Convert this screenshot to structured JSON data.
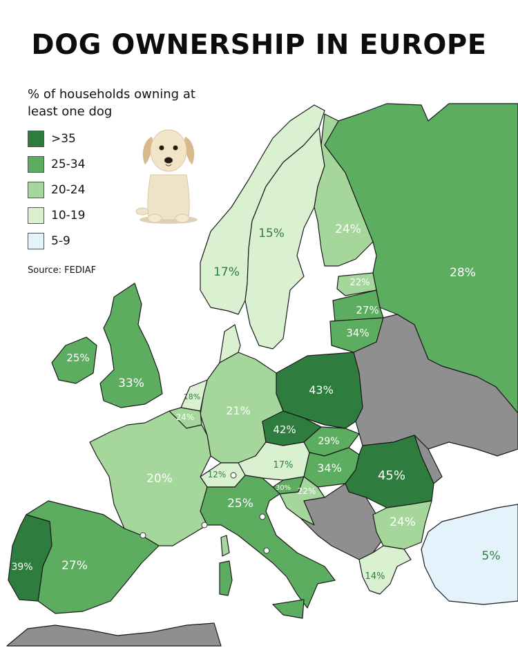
{
  "title": "DOG OWNERSHIP IN EUROPE",
  "legend": {
    "title": "% of households owning at least one dog",
    "items": [
      {
        "label": ">35",
        "color": "#2e7d3e"
      },
      {
        "label": "25-34",
        "color": "#5cad60"
      },
      {
        "label": "20-24",
        "color": "#a5d69b"
      },
      {
        "label": "10-19",
        "color": "#d9f0d1"
      },
      {
        "label": "5-9",
        "color": "#e3f2fb"
      }
    ]
  },
  "source": "Source: FEDIAF",
  "no_data_color": "#8f8f8f",
  "countries": [
    {
      "name": "Norway",
      "value": "17%",
      "category": "10-19"
    },
    {
      "name": "Sweden",
      "value": "15%",
      "category": "10-19"
    },
    {
      "name": "Finland",
      "value": "24%",
      "category": "20-24"
    },
    {
      "name": "Russia",
      "value": "28%",
      "category": "25-34"
    },
    {
      "name": "Estonia",
      "value": "22%",
      "category": "20-24"
    },
    {
      "name": "Latvia",
      "value": "27%",
      "category": "25-34"
    },
    {
      "name": "Lithuania",
      "value": "34%",
      "category": "25-34"
    },
    {
      "name": "Ireland",
      "value": "25%",
      "category": "25-34"
    },
    {
      "name": "United Kingdom",
      "value": "33%",
      "category": "25-34"
    },
    {
      "name": "Netherlands",
      "value": "18%",
      "category": "10-19"
    },
    {
      "name": "Belgium",
      "value": "24%",
      "category": "20-24"
    },
    {
      "name": "Germany",
      "value": "21%",
      "category": "20-24"
    },
    {
      "name": "Poland",
      "value": "43%",
      "category": ">35"
    },
    {
      "name": "Czechia",
      "value": "42%",
      "category": ">35"
    },
    {
      "name": "Slovakia",
      "value": "29%",
      "category": "25-34"
    },
    {
      "name": "Austria",
      "value": "17%",
      "category": "10-19"
    },
    {
      "name": "Switzerland",
      "value": "12%",
      "category": "10-19"
    },
    {
      "name": "Hungary",
      "value": "34%",
      "category": "25-34"
    },
    {
      "name": "Slovenia",
      "value": "30%",
      "category": "25-34"
    },
    {
      "name": "Croatia",
      "value": "22%",
      "category": "20-24"
    },
    {
      "name": "Romania",
      "value": "45%",
      "category": ">35"
    },
    {
      "name": "France",
      "value": "20%",
      "category": "20-24"
    },
    {
      "name": "Italy",
      "value": "25%",
      "category": "25-34"
    },
    {
      "name": "Bulgaria",
      "value": "24%",
      "category": "20-24"
    },
    {
      "name": "Turkey",
      "value": "5%",
      "category": "5-9"
    },
    {
      "name": "Greece",
      "value": "14%",
      "category": "10-19"
    },
    {
      "name": "Portugal",
      "value": "39%",
      "category": ">35"
    },
    {
      "name": "Spain",
      "value": "27%",
      "category": "25-34"
    }
  ]
}
